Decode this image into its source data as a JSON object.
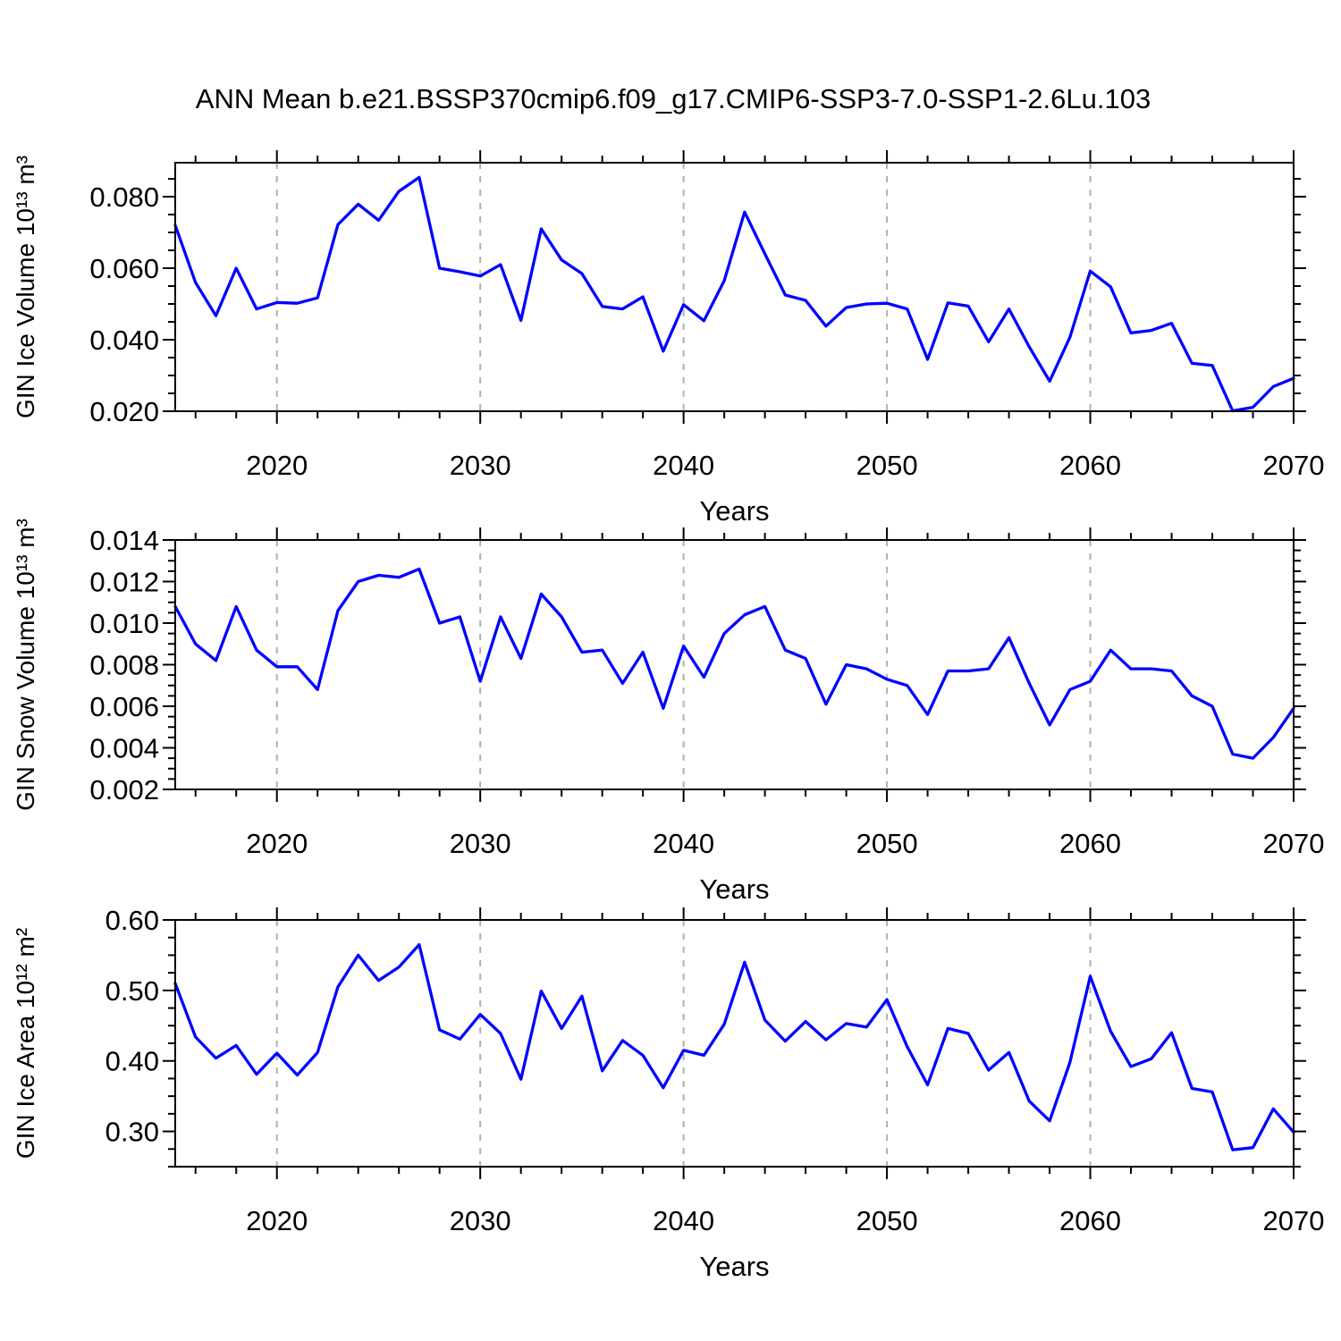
{
  "title": "ANN Mean b.e21.BSSP370cmip6.f09_g17.CMIP6-SSP3-7.0-SSP1-2.6Lu.103",
  "colors": {
    "line": "#0000ff",
    "axis": "#000000",
    "grid": "#b0b0b0",
    "background": "#ffffff",
    "text": "#000000"
  },
  "chart_data": [
    {
      "type": "line",
      "ylabel": "GIN Ice Volume 10¹³ m³",
      "xlabel": "Years",
      "xlim": [
        2015,
        2070
      ],
      "ylim": [
        0.02,
        0.0895
      ],
      "xticks": [
        2020,
        2030,
        2040,
        2050,
        2060,
        2070
      ],
      "xtick_labels": [
        "2020",
        "2030",
        "2040",
        "2050",
        "2060",
        "2070"
      ],
      "xminor_step": 2,
      "yticks": [
        0.02,
        0.04,
        0.06,
        0.08
      ],
      "ytick_labels": [
        "0.020",
        "0.040",
        "0.060",
        "0.080"
      ],
      "yminor_step": 0.005,
      "grid_x": [
        2020,
        2030,
        2040,
        2050,
        2060
      ],
      "x": [
        2015,
        2016,
        2017,
        2018,
        2019,
        2020,
        2021,
        2022,
        2023,
        2024,
        2025,
        2026,
        2027,
        2028,
        2029,
        2030,
        2031,
        2032,
        2033,
        2034,
        2035,
        2036,
        2037,
        2038,
        2039,
        2040,
        2041,
        2042,
        2043,
        2044,
        2045,
        2046,
        2047,
        2048,
        2049,
        2050,
        2051,
        2052,
        2053,
        2054,
        2055,
        2056,
        2057,
        2058,
        2059,
        2060,
        2061,
        2062,
        2063,
        2064,
        2065,
        2066,
        2067,
        2068,
        2069,
        2070
      ],
      "values": [
        0.072,
        0.056,
        0.0467,
        0.06,
        0.0486,
        0.0504,
        0.0502,
        0.0517,
        0.0722,
        0.0779,
        0.0734,
        0.0815,
        0.0854,
        0.06,
        0.059,
        0.0578,
        0.061,
        0.0454,
        0.071,
        0.0623,
        0.0585,
        0.0493,
        0.0486,
        0.052,
        0.0368,
        0.0498,
        0.0453,
        0.0565,
        0.0757,
        0.064,
        0.0525,
        0.051,
        0.0438,
        0.049,
        0.05,
        0.0502,
        0.0486,
        0.0345,
        0.0503,
        0.0494,
        0.0394,
        0.0486,
        0.038,
        0.0284,
        0.0407,
        0.0592,
        0.0548,
        0.0419,
        0.0426,
        0.0446,
        0.0334,
        0.0328,
        0.0201,
        0.0211,
        0.0269,
        0.0292
      ]
    },
    {
      "type": "line",
      "ylabel": "GIN Snow Volume 10¹³ m³",
      "xlabel": "Years",
      "xlim": [
        2015,
        2070
      ],
      "ylim": [
        0.002,
        0.014
      ],
      "xticks": [
        2020,
        2030,
        2040,
        2050,
        2060,
        2070
      ],
      "xtick_labels": [
        "2020",
        "2030",
        "2040",
        "2050",
        "2060",
        "2070"
      ],
      "xminor_step": 2,
      "yticks": [
        0.002,
        0.004,
        0.006,
        0.008,
        0.01,
        0.012,
        0.014
      ],
      "ytick_labels": [
        "0.002",
        "0.004",
        "0.006",
        "0.008",
        "0.010",
        "0.012",
        "0.014"
      ],
      "yminor_step": 0.0005,
      "grid_x": [
        2020,
        2030,
        2040,
        2050,
        2060
      ],
      "x": [
        2015,
        2016,
        2017,
        2018,
        2019,
        2020,
        2021,
        2022,
        2023,
        2024,
        2025,
        2026,
        2027,
        2028,
        2029,
        2030,
        2031,
        2032,
        2033,
        2034,
        2035,
        2036,
        2037,
        2038,
        2039,
        2040,
        2041,
        2042,
        2043,
        2044,
        2045,
        2046,
        2047,
        2048,
        2049,
        2050,
        2051,
        2052,
        2053,
        2054,
        2055,
        2056,
        2057,
        2058,
        2059,
        2060,
        2061,
        2062,
        2063,
        2064,
        2065,
        2066,
        2067,
        2068,
        2069,
        2070
      ],
      "values": [
        0.0108,
        0.009,
        0.0082,
        0.0108,
        0.0087,
        0.0079,
        0.0079,
        0.0068,
        0.0106,
        0.012,
        0.0123,
        0.0122,
        0.0126,
        0.01,
        0.0103,
        0.0072,
        0.0103,
        0.0083,
        0.0114,
        0.0103,
        0.0086,
        0.0087,
        0.0071,
        0.0086,
        0.0059,
        0.0089,
        0.0074,
        0.0095,
        0.0104,
        0.0108,
        0.0087,
        0.0083,
        0.0061,
        0.008,
        0.0078,
        0.0073,
        0.007,
        0.0056,
        0.0077,
        0.0077,
        0.0078,
        0.0093,
        0.0071,
        0.0051,
        0.0068,
        0.0072,
        0.0087,
        0.0078,
        0.0078,
        0.0077,
        0.0065,
        0.006,
        0.0037,
        0.0035,
        0.0045,
        0.0059
      ]
    },
    {
      "type": "line",
      "ylabel": "GIN Ice Area 10¹² m²",
      "xlabel": "Years",
      "xlim": [
        2015,
        2070
      ],
      "ylim": [
        0.25,
        0.6
      ],
      "xticks": [
        2020,
        2030,
        2040,
        2050,
        2060,
        2070
      ],
      "xtick_labels": [
        "2020",
        "2030",
        "2040",
        "2050",
        "2060",
        "2070"
      ],
      "xminor_step": 2,
      "yticks": [
        0.3,
        0.4,
        0.5,
        0.6
      ],
      "ytick_labels": [
        "0.30",
        "0.40",
        "0.50",
        "0.60"
      ],
      "yminor_step": 0.025,
      "grid_x": [
        2020,
        2030,
        2040,
        2050,
        2060
      ],
      "x": [
        2015,
        2016,
        2017,
        2018,
        2019,
        2020,
        2021,
        2022,
        2023,
        2024,
        2025,
        2026,
        2027,
        2028,
        2029,
        2030,
        2031,
        2032,
        2033,
        2034,
        2035,
        2036,
        2037,
        2038,
        2039,
        2040,
        2041,
        2042,
        2043,
        2044,
        2045,
        2046,
        2047,
        2048,
        2049,
        2050,
        2051,
        2052,
        2053,
        2054,
        2055,
        2056,
        2057,
        2058,
        2059,
        2060,
        2061,
        2062,
        2063,
        2064,
        2065,
        2066,
        2067,
        2068,
        2069,
        2070
      ],
      "values": [
        0.51,
        0.434,
        0.404,
        0.422,
        0.381,
        0.411,
        0.38,
        0.412,
        0.505,
        0.55,
        0.514,
        0.533,
        0.565,
        0.444,
        0.431,
        0.466,
        0.439,
        0.374,
        0.499,
        0.446,
        0.492,
        0.386,
        0.429,
        0.408,
        0.362,
        0.415,
        0.408,
        0.452,
        0.54,
        0.458,
        0.428,
        0.456,
        0.43,
        0.453,
        0.448,
        0.487,
        0.42,
        0.366,
        0.446,
        0.439,
        0.387,
        0.412,
        0.343,
        0.315,
        0.398,
        0.52,
        0.442,
        0.392,
        0.403,
        0.44,
        0.361,
        0.356,
        0.274,
        0.277,
        0.332,
        0.299
      ]
    }
  ]
}
